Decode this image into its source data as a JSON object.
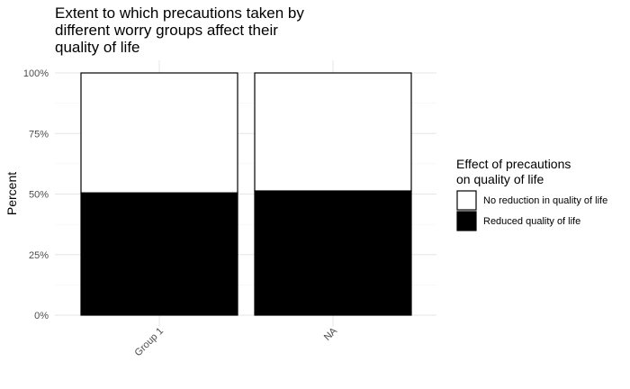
{
  "chart_data": {
    "type": "bar",
    "stacked": true,
    "percent": true,
    "title_lines": [
      "Extent to which precautions taken by",
      "different worry groups affect their",
      "quality of life"
    ],
    "xlabel": "",
    "ylabel": "Percent",
    "categories": [
      "Group 1",
      "NA"
    ],
    "yticks": [
      "0%",
      "25%",
      "50%",
      "75%",
      "100%"
    ],
    "ylim": [
      0,
      1
    ],
    "series": [
      {
        "name": "Reduced quality of life",
        "color": "#000000",
        "values": [
          0.505,
          0.513
        ]
      },
      {
        "name": "No reduction in quality of life",
        "color": "#ffffff",
        "values": [
          0.495,
          0.487
        ]
      }
    ],
    "legend": {
      "title_lines": [
        "Effect of precautions",
        "on quality of life"
      ],
      "position": "right",
      "entries": [
        {
          "label": "No reduction in quality of life",
          "color": "#ffffff"
        },
        {
          "label": "Reduced quality of life",
          "color": "#000000"
        }
      ]
    },
    "grid": true
  }
}
